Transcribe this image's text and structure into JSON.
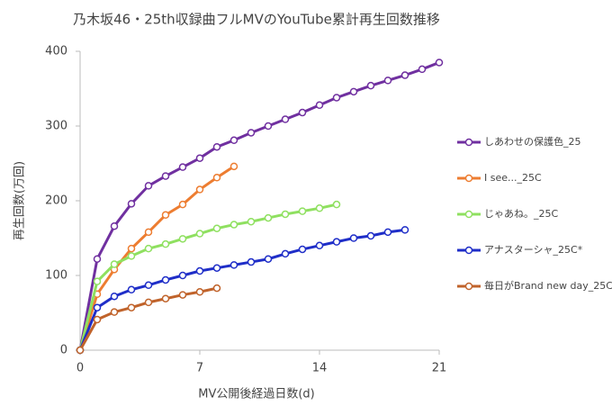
{
  "chart_data": {
    "type": "line",
    "title": "乃木坂46・25th収録曲フルMVのYouTube累計再生回数推移",
    "x_label": "MV公開後経過日数(d)",
    "y_label": "再生回数(万回)",
    "xlim": [
      0,
      21
    ],
    "xticks": [
      0,
      7,
      14,
      21
    ],
    "ylim": [
      0,
      400
    ],
    "yticks": [
      0,
      100,
      200,
      300,
      400
    ],
    "grid": false,
    "legend": "right",
    "series": [
      {
        "name": "しあわせの保護色_25",
        "color": "#7030a0",
        "x": [
          0,
          1,
          2,
          3,
          4,
          5,
          6,
          7,
          8,
          9,
          10,
          11,
          12,
          13,
          14,
          15,
          16,
          17,
          18,
          19,
          20,
          21
        ],
        "values": [
          0,
          122,
          166,
          196,
          220,
          233,
          245,
          257,
          272,
          281,
          291,
          300,
          309,
          318,
          328,
          338,
          346,
          354,
          361,
          368,
          376,
          385
        ]
      },
      {
        "name": "I see..._25C",
        "color": "#ed7d31",
        "x": [
          0,
          1,
          2,
          3,
          4,
          5,
          6,
          7,
          8,
          9
        ],
        "values": [
          0,
          75,
          108,
          136,
          158,
          181,
          195,
          215,
          231,
          246
        ]
      },
      {
        "name": "じゃあね。_25C",
        "color": "#8fe060",
        "x": [
          0,
          1,
          2,
          3,
          4,
          5,
          6,
          7,
          8,
          9,
          10,
          11,
          12,
          13,
          14,
          15
        ],
        "values": [
          0,
          92,
          115,
          126,
          136,
          142,
          149,
          156,
          163,
          168,
          172,
          177,
          182,
          186,
          190,
          195
        ]
      },
      {
        "name": "アナスターシャ_25C*",
        "color": "#1f2ec8",
        "x": [
          0,
          1,
          2,
          3,
          4,
          5,
          6,
          7,
          8,
          9,
          10,
          11,
          12,
          13,
          14,
          15,
          16,
          17,
          18,
          19
        ],
        "values": [
          0,
          57,
          72,
          81,
          87,
          94,
          100,
          106,
          110,
          114,
          118,
          122,
          129,
          135,
          140,
          145,
          150,
          153,
          158,
          161
        ]
      },
      {
        "name": "毎日がBrand new day_25C",
        "color": "#c0632b",
        "x": [
          0,
          1,
          2,
          3,
          4,
          5,
          6,
          7,
          8
        ],
        "values": [
          0,
          41,
          51,
          57,
          64,
          69,
          74,
          78,
          83
        ]
      }
    ]
  }
}
